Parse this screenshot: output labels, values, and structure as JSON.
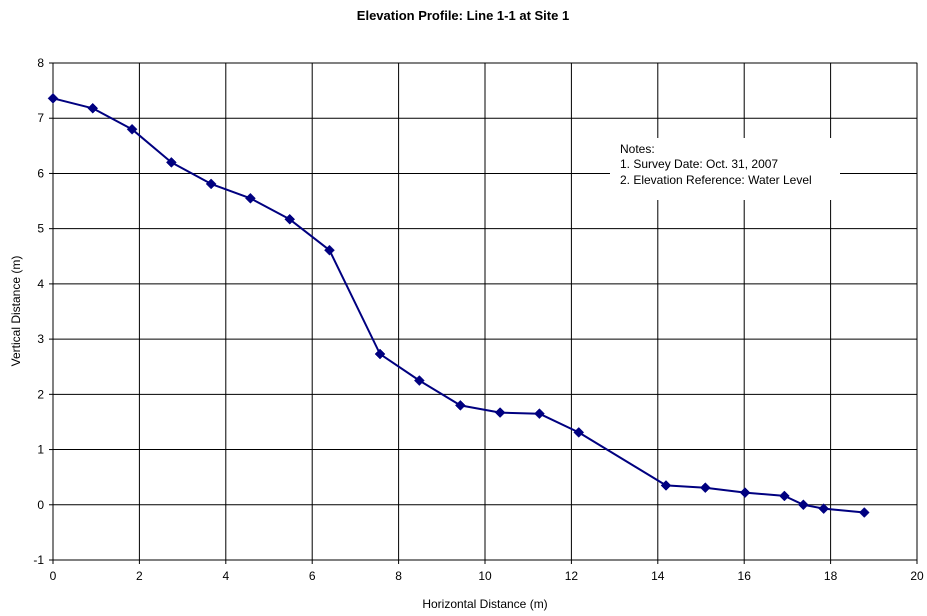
{
  "chart_data": {
    "type": "scatter",
    "title": "Elevation Profile: Line 1-1 at Site 1",
    "xlabel": "Horizontal Distance (m)",
    "ylabel": "Vertical Distance (m)",
    "xlim": [
      0,
      20
    ],
    "ylim": [
      -1,
      8
    ],
    "x_ticks": [
      0,
      2,
      4,
      6,
      8,
      10,
      12,
      14,
      16,
      18,
      20
    ],
    "y_ticks": [
      -1,
      0,
      1,
      2,
      3,
      4,
      5,
      6,
      7,
      8
    ],
    "grid": true,
    "legend": "none",
    "line_color": "#000080",
    "marker": "diamond",
    "series": [
      {
        "x": [
          0,
          0.92,
          1.83,
          2.74,
          3.66,
          4.57,
          5.48,
          6.4,
          7.57,
          8.48,
          9.43,
          10.35,
          11.26,
          12.17,
          14.19,
          15.1,
          16.02,
          16.93,
          17.37,
          17.84,
          18.78
        ],
        "y": [
          7.36,
          7.18,
          6.8,
          6.2,
          5.81,
          5.55,
          5.17,
          4.61,
          2.73,
          2.25,
          1.8,
          1.67,
          1.65,
          1.31,
          0.35,
          0.31,
          0.22,
          0.16,
          0.0,
          -0.07,
          -0.14
        ]
      }
    ],
    "annotations": [
      "Notes:",
      "1. Survey Date: Oct. 31, 2007",
      "2. Elevation Reference: Water Level"
    ]
  }
}
